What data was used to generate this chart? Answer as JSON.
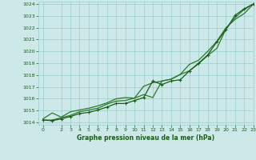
{
  "title": "Graphe pression niveau de la mer (hPa)",
  "background_color": "#cce8e8",
  "grid_color": "#99cccc",
  "line_color_main": "#1a5c1a",
  "line_color_secondary": "#2a7a2a",
  "xlim": [
    -0.5,
    23
  ],
  "ylim": [
    1013.8,
    1024.2
  ],
  "yticks": [
    1014,
    1015,
    1016,
    1017,
    1018,
    1019,
    1020,
    1021,
    1022,
    1023,
    1024
  ],
  "xticks": [
    0,
    2,
    3,
    4,
    5,
    6,
    7,
    8,
    9,
    10,
    11,
    12,
    13,
    14,
    15,
    16,
    17,
    18,
    19,
    20,
    21,
    22,
    23
  ],
  "series1": {
    "x": [
      0,
      1,
      2,
      3,
      4,
      5,
      6,
      7,
      8,
      9,
      10,
      11,
      12,
      13,
      14,
      15,
      16,
      17,
      18,
      19,
      20,
      21,
      22,
      23
    ],
    "y": [
      1014.2,
      1014.15,
      1014.3,
      1014.5,
      1014.75,
      1014.85,
      1015.05,
      1015.3,
      1015.6,
      1015.6,
      1015.85,
      1016.1,
      1017.5,
      1017.2,
      1017.5,
      1017.6,
      1018.35,
      1019.0,
      1019.7,
      1020.8,
      1021.85,
      1023.05,
      1023.6,
      1024.0
    ]
  },
  "series2": {
    "x": [
      0,
      1,
      2,
      3,
      4,
      5,
      6,
      7,
      8,
      9,
      10,
      11,
      12,
      13,
      14,
      15,
      16,
      17,
      18,
      19,
      20,
      21,
      22,
      23
    ],
    "y": [
      1014.2,
      1014.2,
      1014.4,
      1014.6,
      1014.9,
      1015.05,
      1015.2,
      1015.55,
      1015.8,
      1015.85,
      1016.05,
      1016.35,
      1016.1,
      1017.5,
      1017.65,
      1018.05,
      1018.9,
      1019.25,
      1020.0,
      1020.85,
      1022.0,
      1022.7,
      1023.2,
      1024.0
    ]
  },
  "series3": {
    "x": [
      0,
      1,
      2,
      3,
      4,
      5,
      6,
      7,
      8,
      9,
      10,
      11,
      12,
      13,
      14,
      15,
      16,
      17,
      18,
      19,
      20,
      21,
      22,
      23
    ],
    "y": [
      1014.3,
      1014.8,
      1014.45,
      1014.9,
      1015.05,
      1015.2,
      1015.4,
      1015.65,
      1016.0,
      1016.1,
      1016.05,
      1017.05,
      1017.35,
      1017.5,
      1017.65,
      1018.05,
      1018.35,
      1018.95,
      1019.65,
      1020.25,
      1021.9,
      1022.85,
      1023.55,
      1024.0
    ]
  }
}
